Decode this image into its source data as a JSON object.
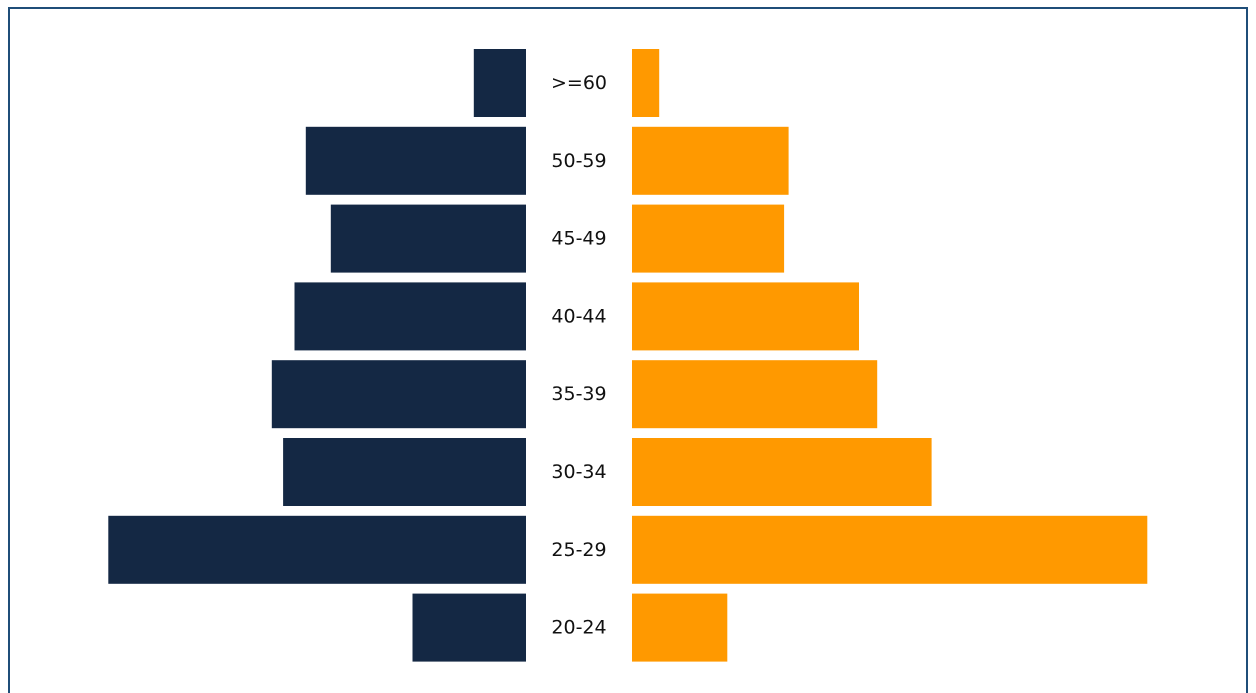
{
  "chart_data": {
    "type": "bar",
    "orientation": "horizontal",
    "layout": "population-pyramid",
    "title": "",
    "xlabel": "",
    "ylabel": "",
    "grid": false,
    "legend": "none",
    "categories": [
      ">=60",
      "50-59",
      "45-49",
      "40-44",
      "35-39",
      "30-34",
      "25-29",
      "20-24"
    ],
    "series": [
      {
        "side": "left",
        "color": "#142844",
        "values": [
          2.3,
          9.7,
          8.6,
          10.2,
          11.2,
          10.7,
          18.4,
          5.0
        ]
      },
      {
        "side": "right",
        "color": "#ff9900",
        "values": [
          1.2,
          6.9,
          6.7,
          10.0,
          10.8,
          13.2,
          22.7,
          4.2
        ]
      }
    ]
  }
}
